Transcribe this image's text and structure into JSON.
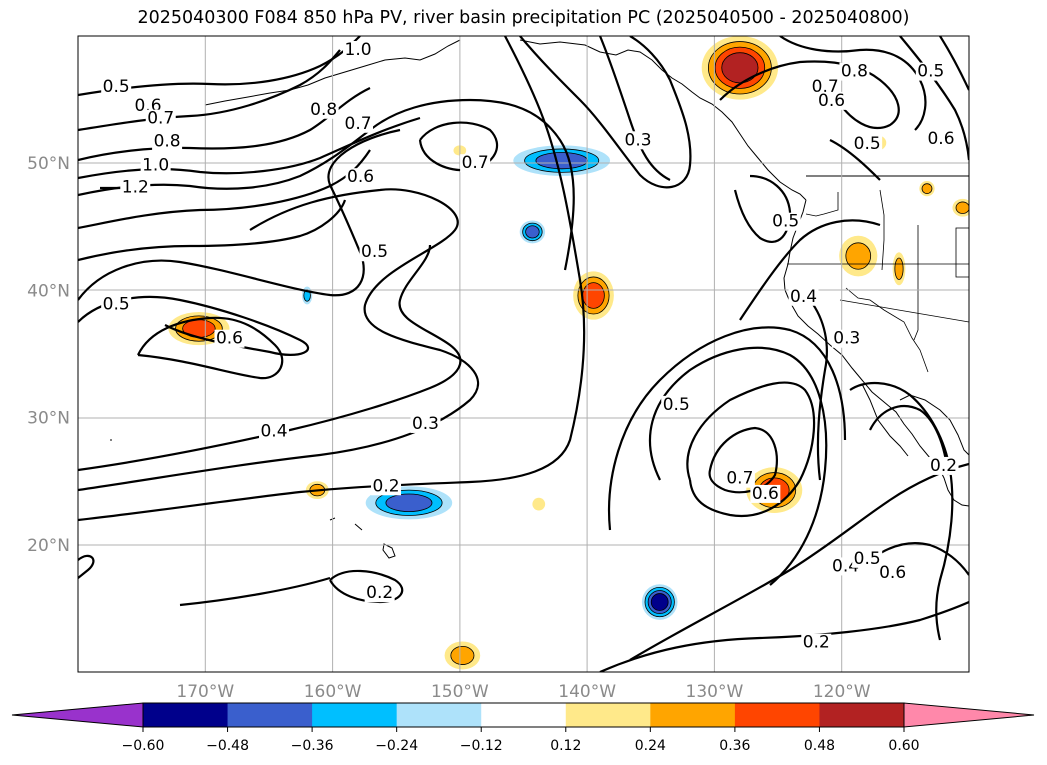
{
  "chart_data": {
    "type": "contour",
    "title": "2025040300 F084 850 hPa PV, river basin precipitation PC (2025040500 - 2025040800)",
    "map": {
      "lon_range": [
        -180,
        -110
      ],
      "lat_range": [
        10,
        60
      ],
      "lon_ticks": [
        {
          "value": -170,
          "label": "170°W"
        },
        {
          "value": -160,
          "label": "160°W"
        },
        {
          "value": -150,
          "label": "150°W"
        },
        {
          "value": -140,
          "label": "140°W"
        },
        {
          "value": -130,
          "label": "130°W"
        },
        {
          "value": -120,
          "label": "120°W"
        }
      ],
      "lat_ticks": [
        {
          "value": 20,
          "label": "20°N"
        },
        {
          "value": 30,
          "label": "30°N"
        },
        {
          "value": 40,
          "label": "40°N"
        },
        {
          "value": 50,
          "label": "50°N"
        }
      ],
      "grid": true
    },
    "colorbar": {
      "levels": [
        "−0.60",
        "−0.48",
        "−0.36",
        "−0.24",
        "−0.12",
        "0.12",
        "0.24",
        "0.36",
        "0.48",
        "0.60"
      ],
      "colors": [
        "#9932cc",
        "#00008b",
        "#3a5fcd",
        "#00bfff",
        "#aee2fa",
        "#ffffff",
        "#ffe98a",
        "#ffa500",
        "#ff4500",
        "#b22222",
        "#ff88aa"
      ],
      "extend": "both"
    },
    "contour_labels": [
      {
        "text": "0.5",
        "lon": -177,
        "lat": 56.0
      },
      {
        "text": "0.6",
        "lon": -174.5,
        "lat": 54.5
      },
      {
        "text": "0.7",
        "lon": -173.5,
        "lat": 53.5
      },
      {
        "text": "0.8",
        "lon": -173.0,
        "lat": 51.7
      },
      {
        "text": "1.0",
        "lon": -173.9,
        "lat": 49.8
      },
      {
        "text": "1.2",
        "lon": -175.5,
        "lat": 48.1
      },
      {
        "text": "1.0",
        "lon": -158.0,
        "lat": 58.9
      },
      {
        "text": "0.8",
        "lon": -160.7,
        "lat": 54.2
      },
      {
        "text": "0.7",
        "lon": -158.0,
        "lat": 53.1
      },
      {
        "text": "0.6",
        "lon": -157.8,
        "lat": 48.9
      },
      {
        "text": "0.7",
        "lon": -148.8,
        "lat": 50.0
      },
      {
        "text": "0.5",
        "lon": -156.7,
        "lat": 43.0
      },
      {
        "text": "0.5",
        "lon": -177.0,
        "lat": 38.9
      },
      {
        "text": "0.6",
        "lon": -168.1,
        "lat": 36.2
      },
      {
        "text": "0.4",
        "lon": -164.6,
        "lat": 28.9
      },
      {
        "text": "0.3",
        "lon": -152.7,
        "lat": 29.5
      },
      {
        "text": "0.2",
        "lon": -155.8,
        "lat": 24.6
      },
      {
        "text": "0.2",
        "lon": -156.3,
        "lat": 16.2
      },
      {
        "text": "0.3",
        "lon": -136.0,
        "lat": 51.8
      },
      {
        "text": "0.7",
        "lon": -121.3,
        "lat": 56.0
      },
      {
        "text": "0.8",
        "lon": -119.0,
        "lat": 57.2
      },
      {
        "text": "0.6",
        "lon": -120.8,
        "lat": 54.9
      },
      {
        "text": "0.5",
        "lon": -113.0,
        "lat": 57.2
      },
      {
        "text": "0.5",
        "lon": -118.0,
        "lat": 51.5
      },
      {
        "text": "0.6",
        "lon": -112.2,
        "lat": 51.9
      },
      {
        "text": "0.5",
        "lon": -124.4,
        "lat": 45.4
      },
      {
        "text": "0.4",
        "lon": -123.0,
        "lat": 39.5
      },
      {
        "text": "0.3",
        "lon": -119.6,
        "lat": 36.2
      },
      {
        "text": "0.5",
        "lon": -133.0,
        "lat": 31.0
      },
      {
        "text": "0.7",
        "lon": -128.0,
        "lat": 25.2
      },
      {
        "text": "0.6",
        "lon": -126.0,
        "lat": 24.0
      },
      {
        "text": "0.4",
        "lon": -119.7,
        "lat": 18.3
      },
      {
        "text": "0.5",
        "lon": -118.0,
        "lat": 18.9
      },
      {
        "text": "0.6",
        "lon": -116.0,
        "lat": 17.8
      },
      {
        "text": "0.2",
        "lon": -112.0,
        "lat": 26.2
      },
      {
        "text": "0.2",
        "lon": -122.0,
        "lat": 12.3
      }
    ],
    "shaded_regions": [
      {
        "value": 0.36,
        "lon": -170.5,
        "lat": 37.0,
        "rlon": 2.4,
        "rlat": 1.3
      },
      {
        "value": 0.36,
        "lon": -139.5,
        "lat": 39.6,
        "rlon": 1.6,
        "rlat": 1.9
      },
      {
        "value": 0.48,
        "lon": -128.0,
        "lat": 57.5,
        "rlon": 3.0,
        "rlat": 2.5
      },
      {
        "value": 0.36,
        "lon": -125.3,
        "lat": 24.3,
        "rlon": 2.2,
        "rlat": 1.8
      },
      {
        "value": 0.24,
        "lon": -118.7,
        "lat": 42.7,
        "rlon": 1.5,
        "rlat": 1.6
      },
      {
        "value": 0.24,
        "lon": -149.8,
        "lat": 11.3,
        "rlon": 1.4,
        "rlat": 1.1
      },
      {
        "value": 0.24,
        "lon": -161.2,
        "lat": 24.3,
        "rlon": 0.9,
        "rlat": 0.7
      },
      {
        "value": 0.12,
        "lon": -150.0,
        "lat": 51.0,
        "rlon": 0.5,
        "rlat": 0.4
      },
      {
        "value": 0.12,
        "lon": -143.8,
        "lat": 23.2,
        "rlon": 0.5,
        "rlat": 0.5
      },
      {
        "value": 0.24,
        "lon": -110.5,
        "lat": 46.5,
        "rlon": 0.8,
        "rlat": 0.7
      },
      {
        "value": 0.24,
        "lon": -113.3,
        "lat": 48.0,
        "rlon": 0.6,
        "rlat": 0.6
      },
      {
        "value": 0.24,
        "lon": -115.5,
        "lat": 41.7,
        "rlon": 0.5,
        "rlat": 1.3
      },
      {
        "value": 0.12,
        "lon": -117.2,
        "lat": 51.6,
        "rlon": 0.7,
        "rlat": 0.6
      },
      {
        "value": -0.36,
        "lon": -154.0,
        "lat": 23.3,
        "rlon": 3.4,
        "rlat": 1.3
      },
      {
        "value": -0.36,
        "lon": -142.0,
        "lat": 50.2,
        "rlon": 3.8,
        "rlat": 1.2
      },
      {
        "value": -0.36,
        "lon": -144.3,
        "lat": 44.6,
        "rlon": 1.0,
        "rlat": 0.9
      },
      {
        "value": -0.48,
        "lon": -134.3,
        "lat": 15.5,
        "rlon": 1.4,
        "rlat": 1.4
      },
      {
        "value": -0.24,
        "lon": -162.0,
        "lat": 39.6,
        "rlon": 0.4,
        "rlat": 0.7
      }
    ]
  }
}
